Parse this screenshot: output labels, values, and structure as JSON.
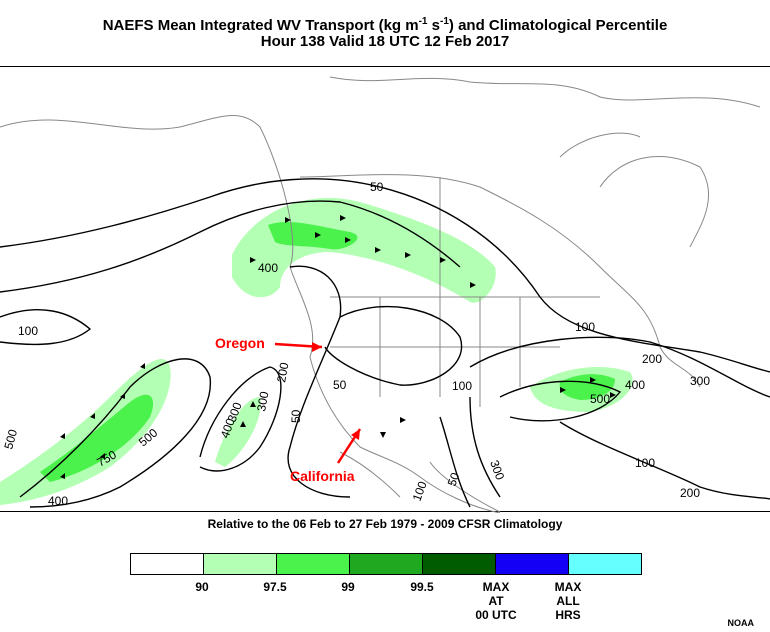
{
  "title": {
    "main": "NAEFS Mean Integrated WV Transport (kg m",
    "sup1": "-1",
    "mid": " s",
    "sup2": "-1",
    "end": ") and Climatological Percentile",
    "line2": "Hour 138 Valid 18 UTC 12 Feb 2017"
  },
  "map": {
    "annotations": {
      "oregon": "Oregon",
      "california": "California"
    },
    "contour_labels": [
      "50",
      "100",
      "400",
      "100",
      "200",
      "300",
      "750",
      "500",
      "400",
      "500",
      "300",
      "200",
      "50",
      "50",
      "400",
      "100",
      "100",
      "300",
      "200",
      "400",
      "500",
      "300",
      "100",
      "200",
      "100",
      "50",
      "50"
    ],
    "colors": {
      "p90": "#ffffff",
      "p97_5": "#b3ffb3",
      "p99": "#4cf24c",
      "p99_5": "#21a821",
      "max00": "#005c00",
      "maxall": "#1400f5",
      "maxhrs": "#66ffff",
      "arrow": "#ff0000"
    }
  },
  "caption": "Relative to the 06 Feb to 27 Feb 1979 - 2009 CFSR Climatology",
  "legend": {
    "labels": [
      "90",
      "97.5",
      "99",
      "99.5"
    ],
    "max00": [
      "MAX",
      "AT",
      "00 UTC"
    ],
    "maxall": [
      "MAX",
      "ALL",
      "HRS"
    ]
  },
  "credit": "NOAA"
}
